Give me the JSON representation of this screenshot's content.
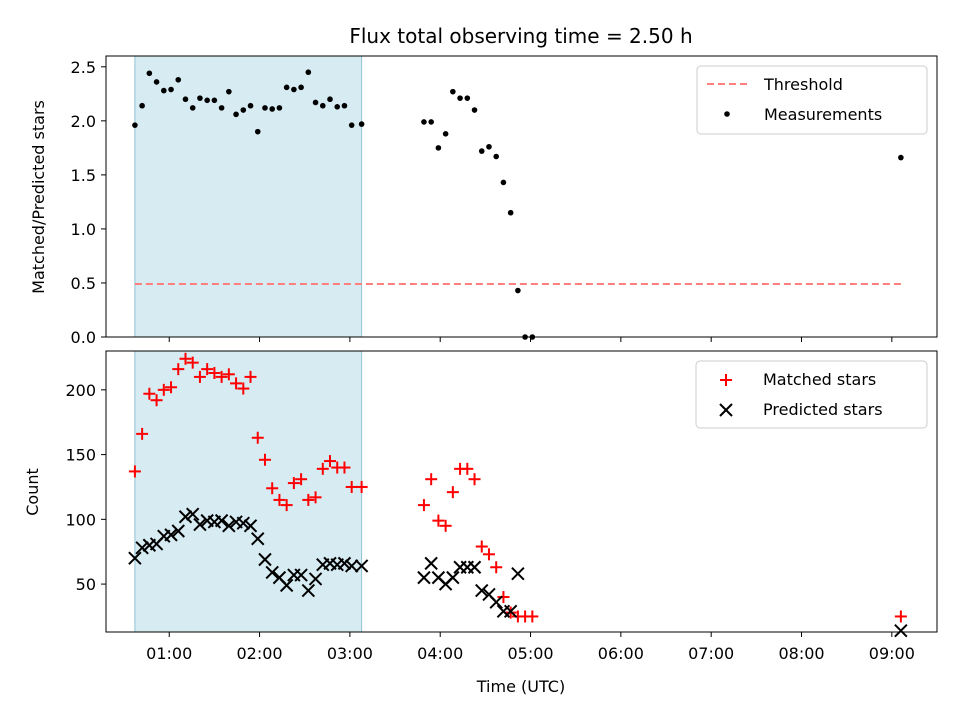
{
  "chart_data": {
    "type": "scatter",
    "title": "Flux total observing time = 2.50 h",
    "xlabel": "Time (UTC)",
    "x_tick_labels": [
      "01:00",
      "02:00",
      "03:00",
      "04:00",
      "05:00",
      "06:00",
      "07:00",
      "08:00",
      "09:00"
    ],
    "x_ticks_hours": [
      1,
      2,
      3,
      4,
      5,
      6,
      7,
      8,
      9
    ],
    "xlim_hours": [
      0.3,
      9.5
    ],
    "shaded_interval_hours": [
      0.62,
      3.13
    ],
    "shade_color": "#add8e6",
    "panels": [
      {
        "ylabel": "Matched/Predicted stars",
        "ylim": [
          0,
          2.6
        ],
        "y_ticks": [
          0.0,
          0.5,
          1.0,
          1.5,
          2.0,
          2.5
        ],
        "y_tick_labels": [
          "0.0",
          "0.5",
          "1.0",
          "1.5",
          "2.0",
          "2.5"
        ],
        "legend": {
          "position": "upper right",
          "entries": [
            "Threshold",
            "Measurements"
          ]
        },
        "threshold": {
          "name": "Threshold",
          "value": 0.49,
          "x_range_hours": [
            0.62,
            9.1
          ],
          "color": "#ff7f7f"
        },
        "measurements": {
          "name": "Measurements",
          "color": "#000000",
          "x": [
            0.62,
            0.7,
            0.78,
            0.86,
            0.94,
            1.02,
            1.1,
            1.18,
            1.26,
            1.34,
            1.42,
            1.5,
            1.58,
            1.66,
            1.74,
            1.82,
            1.9,
            1.98,
            2.06,
            2.14,
            2.22,
            2.3,
            2.38,
            2.46,
            2.54,
            2.62,
            2.7,
            2.78,
            2.86,
            2.94,
            3.02,
            3.13,
            3.82,
            3.9,
            3.98,
            4.06,
            4.14,
            4.22,
            4.3,
            4.38,
            4.46,
            4.54,
            4.62,
            4.7,
            4.78,
            4.86,
            4.94,
            5.02,
            9.1
          ],
          "y": [
            1.96,
            2.14,
            2.44,
            2.36,
            2.28,
            2.29,
            2.38,
            2.2,
            2.12,
            2.21,
            2.19,
            2.19,
            2.12,
            2.27,
            2.06,
            2.1,
            2.14,
            1.9,
            2.12,
            2.11,
            2.12,
            2.31,
            2.29,
            2.31,
            2.45,
            2.17,
            2.14,
            2.2,
            2.13,
            2.14,
            1.96,
            1.97,
            1.99,
            1.99,
            1.75,
            1.88,
            2.27,
            2.21,
            2.21,
            2.1,
            1.72,
            1.76,
            1.67,
            1.43,
            1.15,
            0.43,
            0.0,
            0.0,
            1.66
          ]
        }
      },
      {
        "ylabel": "Count",
        "ylim": [
          13,
          230
        ],
        "y_ticks": [
          50,
          100,
          150,
          200
        ],
        "y_tick_labels": [
          "50",
          "100",
          "150",
          "200"
        ],
        "legend": {
          "position": "upper right",
          "entries": [
            "Matched stars",
            "Predicted stars"
          ]
        },
        "series": [
          {
            "name": "Matched stars",
            "marker": "+",
            "color": "#ff0000",
            "x": [
              0.62,
              0.7,
              0.78,
              0.86,
              0.94,
              1.02,
              1.1,
              1.18,
              1.26,
              1.34,
              1.42,
              1.5,
              1.58,
              1.66,
              1.74,
              1.82,
              1.9,
              1.98,
              2.06,
              2.14,
              2.22,
              2.3,
              2.38,
              2.46,
              2.54,
              2.62,
              2.7,
              2.78,
              2.86,
              2.94,
              3.02,
              3.13,
              3.82,
              3.9,
              3.98,
              4.06,
              4.14,
              4.22,
              4.3,
              4.38,
              4.46,
              4.54,
              4.62,
              4.7,
              4.78,
              4.86,
              4.94,
              5.02,
              9.1
            ],
            "y": [
              137,
              166,
              197,
              192,
              200,
              202,
              216,
              224,
              221,
              210,
              216,
              213,
              210,
              212,
              205,
              201,
              210,
              163,
              146,
              124,
              115,
              111,
              128,
              131,
              115,
              117,
              139,
              145,
              140,
              140,
              125,
              125,
              111,
              131,
              99,
              95,
              121,
              139,
              139,
              131,
              79,
              73,
              63,
              40,
              28,
              25,
              25,
              25,
              25
            ]
          },
          {
            "name": "Predicted stars",
            "marker": "x",
            "color": "#000000",
            "x": [
              0.62,
              0.7,
              0.78,
              0.86,
              0.94,
              1.02,
              1.1,
              1.18,
              1.26,
              1.34,
              1.42,
              1.5,
              1.58,
              1.66,
              1.74,
              1.82,
              1.9,
              1.98,
              2.06,
              2.14,
              2.22,
              2.3,
              2.38,
              2.46,
              2.54,
              2.62,
              2.7,
              2.78,
              2.86,
              2.94,
              3.02,
              3.13,
              3.82,
              3.9,
              3.98,
              4.06,
              4.14,
              4.22,
              4.3,
              4.38,
              4.46,
              4.54,
              4.62,
              4.7,
              4.78,
              4.86,
              9.1
            ],
            "y": [
              70,
              78,
              80,
              81,
              87,
              88,
              91,
              102,
              104,
              96,
              99,
              98,
              99,
              95,
              98,
              97,
              95,
              85,
              69,
              59,
              55,
              49,
              57,
              57,
              45,
              54,
              65,
              66,
              65,
              66,
              64,
              64,
              55,
              66,
              55,
              50,
              55,
              63,
              63,
              63,
              45,
              42,
              36,
              29,
              29,
              58,
              14
            ]
          }
        ]
      }
    ]
  }
}
